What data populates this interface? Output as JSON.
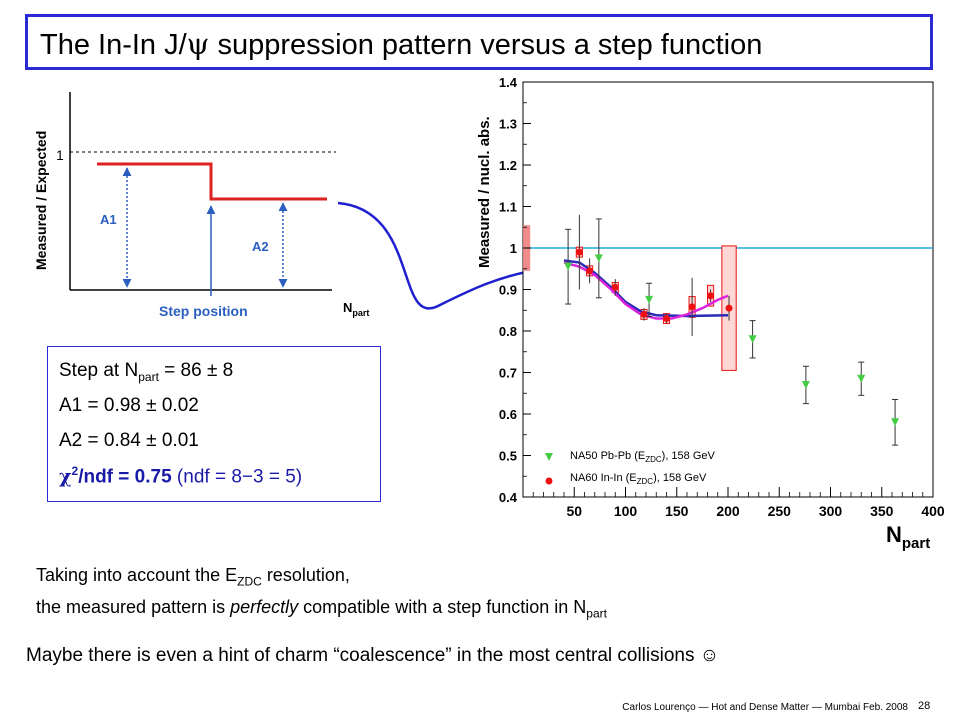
{
  "title": {
    "prefix": "The In-In J/",
    "psi": "ψ",
    "suffix": " suppression pattern versus a step function"
  },
  "schematic": {
    "ylabel": "Measured / Expected",
    "one_label": "1",
    "a1_label": "A1",
    "a2_label": "A2",
    "step_label": "Step position",
    "npart_label": "N",
    "npart_sub": "part"
  },
  "fit": {
    "step_prefix": "Step at N",
    "step_sub": "part",
    "step_value": " = 86 ± 8",
    "a1": "A1 = 0.98 ± 0.02",
    "a2": "A2 = 0.84 ± 0.01",
    "chi": "χ",
    "chi_sup": "2",
    "chi_rest": "/ndf = 0.75",
    "ndf_note": "(ndf = 8−3 = 5)"
  },
  "colors": {
    "title_border": "#2b2bd6",
    "step_red": "#dd2222",
    "blue": "#1f1fd0",
    "na50_green": "#44cc44",
    "na60_red": "#ee1111",
    "magenta": "#dd22dd",
    "cyan": "#22aadd"
  },
  "chart_data": {
    "type": "scatter",
    "ylabel": "Measured / nucl. abs.",
    "xlabel": "N",
    "xlabel_sub": "part",
    "xlim": [
      0,
      400
    ],
    "ylim": [
      0.4,
      1.4
    ],
    "xticks": [
      50,
      100,
      150,
      200,
      250,
      300,
      350,
      400
    ],
    "yticks": [
      0.4,
      0.5,
      0.6,
      0.7,
      0.8,
      0.9,
      1.0,
      1.1,
      1.2,
      1.3,
      1.4
    ],
    "ytick_labels": [
      "0.4",
      "0.5",
      "0.6",
      "0.7",
      "0.8",
      "0.9",
      "1",
      "1.1",
      "1.2",
      "1.3",
      "1.4"
    ],
    "reference_line": 1.0,
    "series": [
      {
        "name": "NA50 Pb-Pb (E",
        "name_sub": "ZDC",
        "name_suffix": "), 158 GeV",
        "marker": "triangle-down",
        "points": [
          {
            "x": 44,
            "y": 0.955,
            "err": 0.09
          },
          {
            "x": 74,
            "y": 0.975,
            "err": 0.095
          },
          {
            "x": 123,
            "y": 0.875,
            "err": 0.04
          },
          {
            "x": 224,
            "y": 0.78,
            "err": 0.045
          },
          {
            "x": 276,
            "y": 0.67,
            "err": 0.045
          },
          {
            "x": 330,
            "y": 0.685,
            "err": 0.04
          },
          {
            "x": 363,
            "y": 0.58,
            "err": 0.055
          }
        ]
      },
      {
        "name": "NA60 In-In (E",
        "name_sub": "ZDC",
        "name_suffix": "), 158 GeV",
        "marker": "circle",
        "points": [
          {
            "x": 55,
            "y": 0.99,
            "err": 0.09
          },
          {
            "x": 65,
            "y": 0.945,
            "err": 0.03
          },
          {
            "x": 90,
            "y": 0.905,
            "err": 0.02
          },
          {
            "x": 118,
            "y": 0.84,
            "err": 0.015
          },
          {
            "x": 140,
            "y": 0.83,
            "err": 0.012
          },
          {
            "x": 165,
            "y": 0.858,
            "err": 0.07
          },
          {
            "x": 183,
            "y": 0.885,
            "err": 0.015
          },
          {
            "x": 201,
            "y": 0.855,
            "err": 0.03
          }
        ]
      }
    ],
    "legend_position": "bottom-left"
  },
  "bottom": {
    "line1_prefix": "Taking into account the E",
    "line1_sub": "ZDC",
    "line1_suffix": " resolution,",
    "line2_prefix": "the measured pattern is ",
    "line2_em": "perfectly",
    "line2_mid": " compatible with a step function in N",
    "line2_sub": "part",
    "line3": "Maybe there is even a hint of charm “coalescence” in the most central collisions ☺"
  },
  "footer": {
    "text": "Carlos Lourenço — Hot and Dense Matter — Mumbai Feb. 2008",
    "page": "28"
  }
}
